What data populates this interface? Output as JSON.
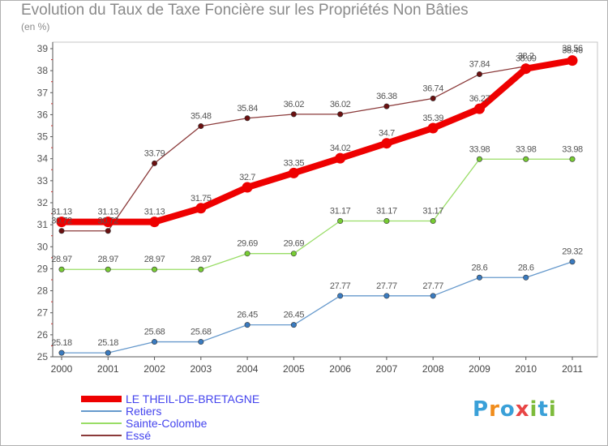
{
  "chart_data": {
    "type": "line",
    "title": "Evolution du Taux de Taxe Foncière sur les Propriétés Non Bâties",
    "subtitle": "(en %)",
    "x": [
      "2000",
      "2001",
      "2002",
      "2003",
      "2004",
      "2005",
      "2006",
      "2007",
      "2008",
      "2009",
      "2010",
      "2011"
    ],
    "ylim": [
      25,
      39
    ],
    "yticks": [
      "25",
      "26",
      "27",
      "28",
      "29",
      "30",
      "31",
      "32",
      "33",
      "34",
      "35",
      "36",
      "37",
      "38",
      "39"
    ],
    "grid": false,
    "legend_position": "bottom-left",
    "series": [
      {
        "name": "Essé",
        "color": "#8b3a3a",
        "point_color": "#6b1010",
        "values": [
          30.72,
          30.72,
          33.79,
          35.48,
          35.84,
          36.02,
          36.02,
          36.38,
          36.74,
          37.84,
          38.2,
          38.56
        ],
        "labels": [
          "30.72",
          "30.72",
          "33.79",
          "35.48",
          "35.84",
          "36.02",
          "36.02",
          "36.38",
          "36.74",
          "37.84",
          "38.2",
          "38.56"
        ]
      },
      {
        "name": "Sainte-Colombe",
        "color": "#99dd66",
        "point_color": "#77cc33",
        "values": [
          28.97,
          28.97,
          28.97,
          28.97,
          29.69,
          29.69,
          31.17,
          31.17,
          31.17,
          33.98,
          33.98,
          33.98
        ],
        "labels": [
          "28.97",
          "28.97",
          "28.97",
          "28.97",
          "29.69",
          "29.69",
          "31.17",
          "31.17",
          "31.17",
          "33.98",
          "33.98",
          "33.98"
        ]
      },
      {
        "name": "Retiers",
        "color": "#6699cc",
        "point_color": "#3a7bc0",
        "values": [
          25.18,
          25.18,
          25.68,
          25.68,
          26.45,
          26.45,
          27.77,
          27.77,
          27.77,
          28.6,
          28.6,
          29.32
        ],
        "labels": [
          "25.18",
          "25.18",
          "25.68",
          "25.68",
          "26.45",
          "26.45",
          "27.77",
          "27.77",
          "27.77",
          "28.6",
          "28.6",
          "29.32"
        ]
      },
      {
        "name": "LE THEIL-DE-BRETAGNE",
        "color": "#ee0000",
        "point_color": "#ee0000",
        "values": [
          31.13,
          31.13,
          31.13,
          31.75,
          32.7,
          33.35,
          34.02,
          34.7,
          35.39,
          36.27,
          38.09,
          38.46
        ],
        "labels": [
          "31.13",
          "31.13",
          "31.13",
          "31.75",
          "32.7",
          "33.35",
          "34.02",
          "34.7",
          "35.39",
          "36.27",
          "38.09",
          "38.46"
        ]
      }
    ],
    "legend_order": [
      3,
      2,
      1,
      0
    ]
  },
  "logo": {
    "letters": [
      "P",
      "r",
      "o",
      "x",
      "i",
      "t",
      "i"
    ],
    "colors": [
      "#3aa0d8",
      "#f08c1c",
      "#3aa0d8",
      "#e84545",
      "#7dbb3b",
      "#3aa0d8",
      "#7dbb3b"
    ]
  }
}
